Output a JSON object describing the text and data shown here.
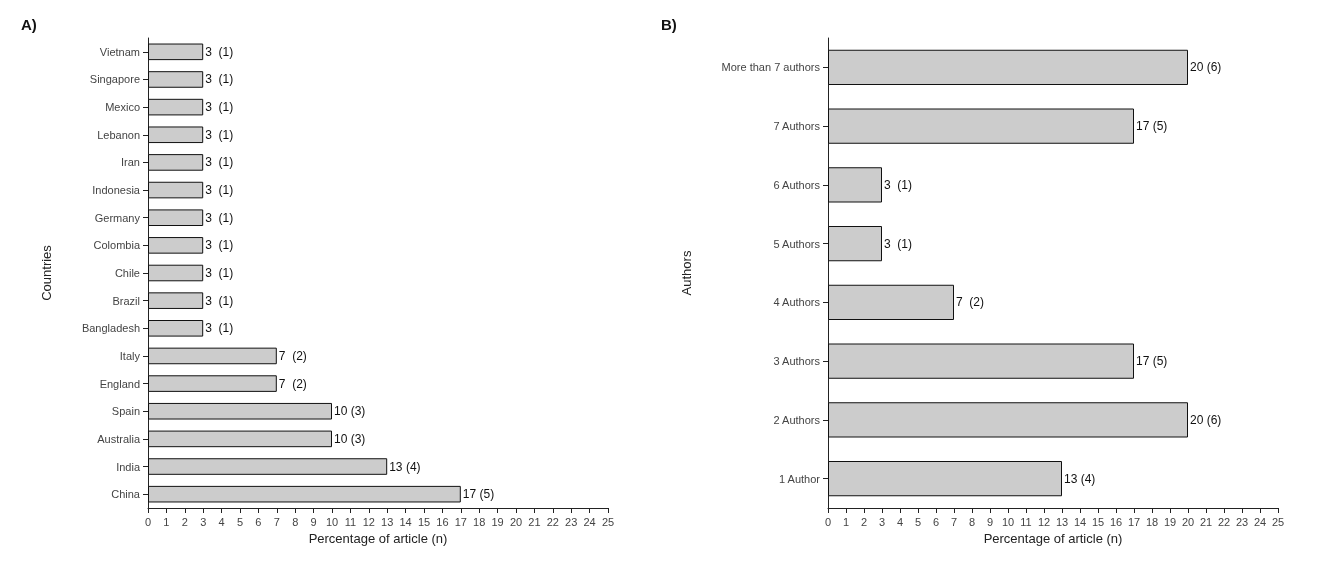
{
  "chart_data": [
    {
      "type": "bar",
      "orientation": "horizontal",
      "title": "A)",
      "xlabel": "Percentage of article (n)",
      "ylabel": "Countries",
      "categories": [
        "Vietnam",
        "Singapore",
        "Mexico",
        "Lebanon",
        "Iran",
        "Indonesia",
        "Germany",
        "Colombia",
        "Chile",
        "Brazil",
        "Bangladesh",
        "Italy",
        "England",
        "Spain",
        "Australia",
        "India",
        "China"
      ],
      "values": [
        3,
        3,
        3,
        3,
        3,
        3,
        3,
        3,
        3,
        3,
        3,
        7,
        7,
        10,
        10,
        13,
        17
      ],
      "value_labels": [
        "3  (1)",
        "3  (1)",
        "3  (1)",
        "3  (1)",
        "3  (1)",
        "3  (1)",
        "3  (1)",
        "3  (1)",
        "3  (1)",
        "3  (1)",
        "3  (1)",
        "7  (2)",
        "7  (2)",
        "10 (3)",
        "10 (3)",
        "13 (4)",
        "17 (5)"
      ],
      "color": "#cccccc",
      "xlim": [
        0,
        25
      ],
      "xticks": [
        0,
        1,
        2,
        3,
        4,
        5,
        6,
        7,
        8,
        9,
        10,
        11,
        12,
        13,
        14,
        15,
        16,
        17,
        18,
        19,
        20,
        21,
        22,
        23,
        24,
        25
      ],
      "grid": false
    },
    {
      "type": "bar",
      "orientation": "horizontal",
      "title": "B)",
      "xlabel": "Percentage of article (n)",
      "ylabel": "Authors",
      "categories": [
        "More than 7 authors",
        "7 Authors",
        "6 Authors",
        "5 Authors",
        "4 Authors",
        "3 Authors",
        "2 Authors",
        "1 Author"
      ],
      "values": [
        20,
        17,
        3,
        3,
        7,
        17,
        20,
        13
      ],
      "value_labels": [
        "20 (6)",
        "17 (5)",
        "3  (1)",
        "3  (1)",
        "7  (2)",
        "17 (5)",
        "20 (6)",
        "13 (4)"
      ],
      "color": "#cccccc",
      "xlim": [
        0,
        25
      ],
      "xticks": [
        0,
        1,
        2,
        3,
        4,
        5,
        6,
        7,
        8,
        9,
        10,
        11,
        12,
        13,
        14,
        15,
        16,
        17,
        18,
        19,
        20,
        21,
        22,
        23,
        24,
        25
      ],
      "grid": false
    }
  ]
}
